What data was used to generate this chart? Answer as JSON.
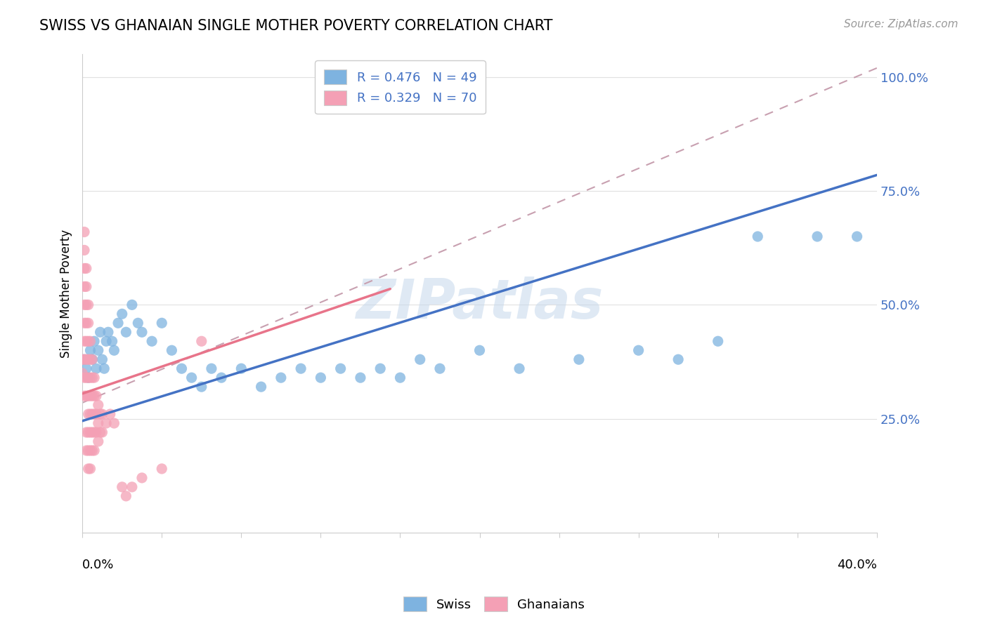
{
  "title": "SWISS VS GHANAIAN SINGLE MOTHER POVERTY CORRELATION CHART",
  "source_text": "Source: ZipAtlas.com",
  "ylabel": "Single Mother Poverty",
  "xlim": [
    0.0,
    0.4
  ],
  "ylim": [
    0.0,
    1.05
  ],
  "xticks": [
    0.0,
    0.04,
    0.08,
    0.12,
    0.16,
    0.2,
    0.24,
    0.28,
    0.32,
    0.36,
    0.4
  ],
  "ytick_positions": [
    0.25,
    0.5,
    0.75,
    1.0
  ],
  "ytick_labels": [
    "25.0%",
    "50.0%",
    "75.0%",
    "100.0%"
  ],
  "swiss_color": "#7eb3e0",
  "ghanaian_color": "#f4a0b5",
  "swiss_line_color": "#4472c4",
  "ghanaian_line_color": "#e8748a",
  "diagonal_color": "#c8a0b0",
  "R_swiss": 0.476,
  "N_swiss": 49,
  "R_ghanaian": 0.329,
  "N_ghanaian": 70,
  "legend_label_swiss": "R = 0.476   N = 49",
  "legend_label_ghanaian": "R = 0.329   N = 70",
  "watermark": "ZIPatlas",
  "swiss_line_x0": 0.0,
  "swiss_line_y0": 0.245,
  "swiss_line_x1": 0.4,
  "swiss_line_y1": 0.785,
  "ghana_line_x0": 0.0,
  "ghana_line_y0": 0.305,
  "ghana_line_x1": 0.155,
  "ghana_line_y1": 0.535,
  "diag_line_x0": 0.0,
  "diag_line_y0": 0.285,
  "diag_line_x1": 0.4,
  "diag_line_y1": 1.02,
  "swiss_points": [
    [
      0.001,
      0.38
    ],
    [
      0.002,
      0.36
    ],
    [
      0.003,
      0.34
    ],
    [
      0.004,
      0.4
    ],
    [
      0.005,
      0.38
    ],
    [
      0.006,
      0.42
    ],
    [
      0.007,
      0.36
    ],
    [
      0.008,
      0.4
    ],
    [
      0.009,
      0.44
    ],
    [
      0.01,
      0.38
    ],
    [
      0.011,
      0.36
    ],
    [
      0.012,
      0.42
    ],
    [
      0.013,
      0.44
    ],
    [
      0.015,
      0.42
    ],
    [
      0.016,
      0.4
    ],
    [
      0.018,
      0.46
    ],
    [
      0.02,
      0.48
    ],
    [
      0.022,
      0.44
    ],
    [
      0.025,
      0.5
    ],
    [
      0.028,
      0.46
    ],
    [
      0.03,
      0.44
    ],
    [
      0.035,
      0.42
    ],
    [
      0.04,
      0.46
    ],
    [
      0.045,
      0.4
    ],
    [
      0.05,
      0.36
    ],
    [
      0.055,
      0.34
    ],
    [
      0.06,
      0.32
    ],
    [
      0.065,
      0.36
    ],
    [
      0.07,
      0.34
    ],
    [
      0.08,
      0.36
    ],
    [
      0.09,
      0.32
    ],
    [
      0.1,
      0.34
    ],
    [
      0.11,
      0.36
    ],
    [
      0.12,
      0.34
    ],
    [
      0.13,
      0.36
    ],
    [
      0.14,
      0.34
    ],
    [
      0.15,
      0.36
    ],
    [
      0.16,
      0.34
    ],
    [
      0.17,
      0.38
    ],
    [
      0.18,
      0.36
    ],
    [
      0.2,
      0.4
    ],
    [
      0.22,
      0.36
    ],
    [
      0.25,
      0.38
    ],
    [
      0.28,
      0.4
    ],
    [
      0.3,
      0.38
    ],
    [
      0.32,
      0.42
    ],
    [
      0.34,
      0.65
    ],
    [
      0.37,
      0.65
    ],
    [
      0.39,
      0.65
    ]
  ],
  "ghanaian_points": [
    [
      0.0,
      0.35
    ],
    [
      0.0,
      0.38
    ],
    [
      0.001,
      0.3
    ],
    [
      0.001,
      0.34
    ],
    [
      0.001,
      0.38
    ],
    [
      0.001,
      0.42
    ],
    [
      0.001,
      0.46
    ],
    [
      0.001,
      0.5
    ],
    [
      0.001,
      0.54
    ],
    [
      0.001,
      0.58
    ],
    [
      0.001,
      0.62
    ],
    [
      0.001,
      0.66
    ],
    [
      0.002,
      0.3
    ],
    [
      0.002,
      0.34
    ],
    [
      0.002,
      0.38
    ],
    [
      0.002,
      0.42
    ],
    [
      0.002,
      0.46
    ],
    [
      0.002,
      0.5
    ],
    [
      0.002,
      0.54
    ],
    [
      0.002,
      0.58
    ],
    [
      0.002,
      0.22
    ],
    [
      0.002,
      0.18
    ],
    [
      0.003,
      0.3
    ],
    [
      0.003,
      0.34
    ],
    [
      0.003,
      0.38
    ],
    [
      0.003,
      0.42
    ],
    [
      0.003,
      0.46
    ],
    [
      0.003,
      0.5
    ],
    [
      0.003,
      0.26
    ],
    [
      0.003,
      0.22
    ],
    [
      0.003,
      0.18
    ],
    [
      0.003,
      0.14
    ],
    [
      0.004,
      0.3
    ],
    [
      0.004,
      0.34
    ],
    [
      0.004,
      0.38
    ],
    [
      0.004,
      0.42
    ],
    [
      0.004,
      0.26
    ],
    [
      0.004,
      0.22
    ],
    [
      0.004,
      0.18
    ],
    [
      0.004,
      0.14
    ],
    [
      0.005,
      0.3
    ],
    [
      0.005,
      0.34
    ],
    [
      0.005,
      0.38
    ],
    [
      0.005,
      0.26
    ],
    [
      0.005,
      0.22
    ],
    [
      0.005,
      0.18
    ],
    [
      0.006,
      0.3
    ],
    [
      0.006,
      0.34
    ],
    [
      0.006,
      0.26
    ],
    [
      0.006,
      0.22
    ],
    [
      0.006,
      0.18
    ],
    [
      0.007,
      0.3
    ],
    [
      0.007,
      0.26
    ],
    [
      0.007,
      0.22
    ],
    [
      0.008,
      0.28
    ],
    [
      0.008,
      0.24
    ],
    [
      0.008,
      0.2
    ],
    [
      0.009,
      0.26
    ],
    [
      0.009,
      0.22
    ],
    [
      0.01,
      0.26
    ],
    [
      0.01,
      0.22
    ],
    [
      0.012,
      0.24
    ],
    [
      0.014,
      0.26
    ],
    [
      0.016,
      0.24
    ],
    [
      0.02,
      0.1
    ],
    [
      0.022,
      0.08
    ],
    [
      0.025,
      0.1
    ],
    [
      0.03,
      0.12
    ],
    [
      0.04,
      0.14
    ],
    [
      0.06,
      0.42
    ]
  ]
}
